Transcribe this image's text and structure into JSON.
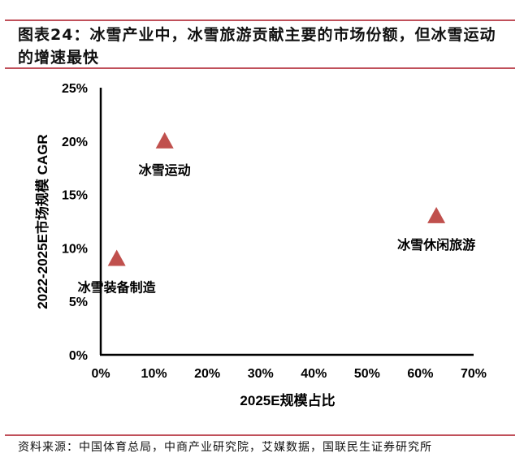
{
  "header": {
    "title": "图表24：冰雪产业中，冰雪旅游贡献主要的市场份额，但冰雪运动的增速最快"
  },
  "footer": {
    "source": "资料来源：中国体育总局，中商产业研究院，艾媒数据，国联民生证券研究所"
  },
  "colors": {
    "rule": "#c0505a",
    "marker": "#c0504d",
    "axis": "#000000"
  },
  "chart_data": {
    "type": "scatter",
    "title": "图表24：冰雪产业中，冰雪旅游贡献主要的市场份额，但冰雪运动的增速最快",
    "xlabel": "2025E规模占比",
    "ylabel": "2022-2025E市场规模 CAGR",
    "xlim": [
      0,
      70
    ],
    "ylim": [
      0,
      25
    ],
    "x_ticks": [
      "0%",
      "10%",
      "20%",
      "30%",
      "40%",
      "50%",
      "60%",
      "70%"
    ],
    "y_ticks": [
      "0%",
      "5%",
      "10%",
      "15%",
      "20%",
      "25%"
    ],
    "grid": false,
    "legend": "none",
    "marker": "triangle",
    "points": [
      {
        "label": "冰雪运动",
        "x": 12,
        "y": 20
      },
      {
        "label": "冰雪装备制造",
        "x": 3,
        "y": 9
      },
      {
        "label": "冰雪休闲旅游",
        "x": 63,
        "y": 13
      }
    ]
  }
}
